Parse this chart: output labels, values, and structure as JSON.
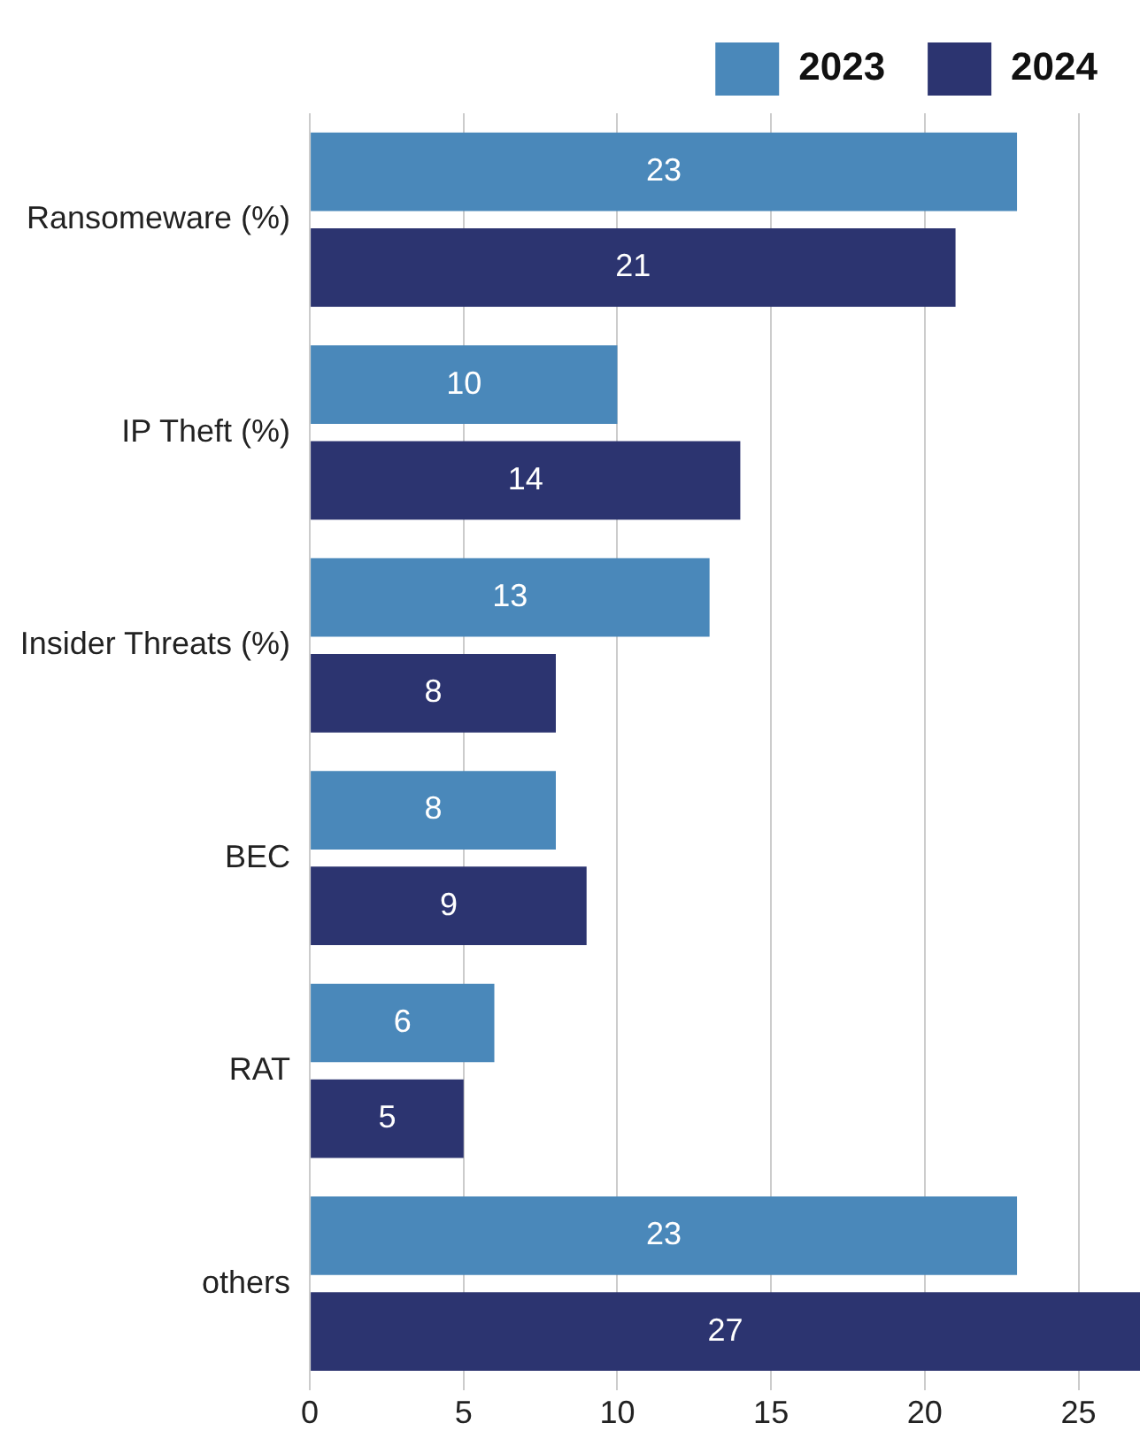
{
  "chart_data": {
    "type": "bar",
    "orientation": "horizontal",
    "categories": [
      "Ransomeware (%)",
      "IP Theft (%)",
      "Insider Threats (%)",
      "BEC",
      "RAT",
      "others"
    ],
    "series": [
      {
        "name": "2023",
        "color": "#4a88ba",
        "values": [
          23,
          10,
          13,
          8,
          6,
          23
        ]
      },
      {
        "name": "2024",
        "color": "#2c3470",
        "values": [
          21,
          14,
          8,
          9,
          5,
          27
        ]
      }
    ],
    "xlim": [
      0,
      27
    ],
    "xticks": [
      0,
      5,
      10,
      15,
      20,
      25
    ],
    "grid": "x",
    "legend": "top right",
    "data_labels": true
  }
}
